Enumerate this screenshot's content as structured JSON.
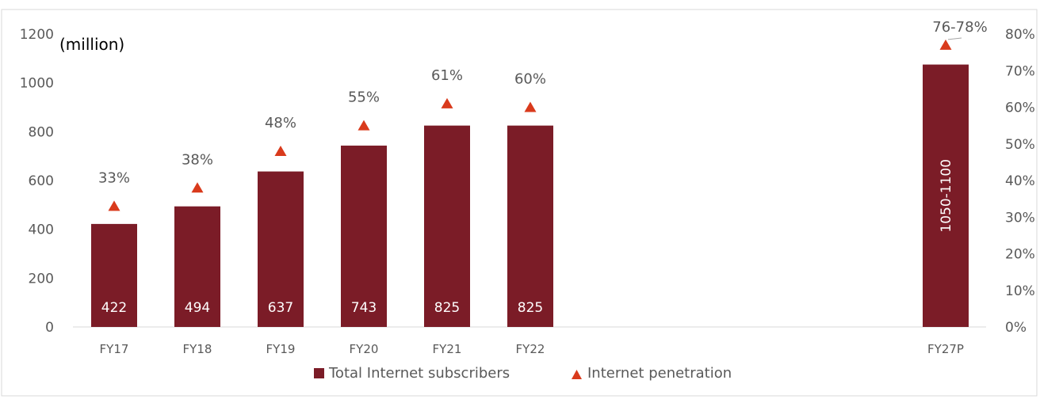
{
  "chart_data": {
    "type": "bar",
    "unit_label": "(million)",
    "categories": [
      "FY17",
      "FY18",
      "FY19",
      "FY20",
      "FY21",
      "FY22",
      "FY27P"
    ],
    "series": [
      {
        "name": "Total Internet subscribers",
        "type": "bar",
        "axis": "left",
        "color": "#7b1c27",
        "values": [
          422,
          494,
          637,
          743,
          825,
          825,
          1075
        ],
        "labels": [
          "422",
          "494",
          "637",
          "743",
          "825",
          "825",
          "1050-1100"
        ]
      },
      {
        "name": "Internet penetration",
        "type": "marker",
        "marker": "triangle",
        "axis": "right",
        "color": "#d93a1c",
        "values": [
          33,
          38,
          48,
          55,
          61,
          60,
          77
        ],
        "labels": [
          "33%",
          "38%",
          "48%",
          "55%",
          "61%",
          "60%",
          "76-78%"
        ]
      }
    ],
    "y_left": {
      "min": 0,
      "max": 1200,
      "ticks": [
        "0",
        "200",
        "400",
        "600",
        "800",
        "1000",
        "1200"
      ]
    },
    "y_right": {
      "min": 0,
      "max": 80,
      "ticks": [
        "0%",
        "10%",
        "20%",
        "30%",
        "40%",
        "50%",
        "60%",
        "70%",
        "80%"
      ]
    },
    "grid": false,
    "legend_position": "bottom"
  }
}
